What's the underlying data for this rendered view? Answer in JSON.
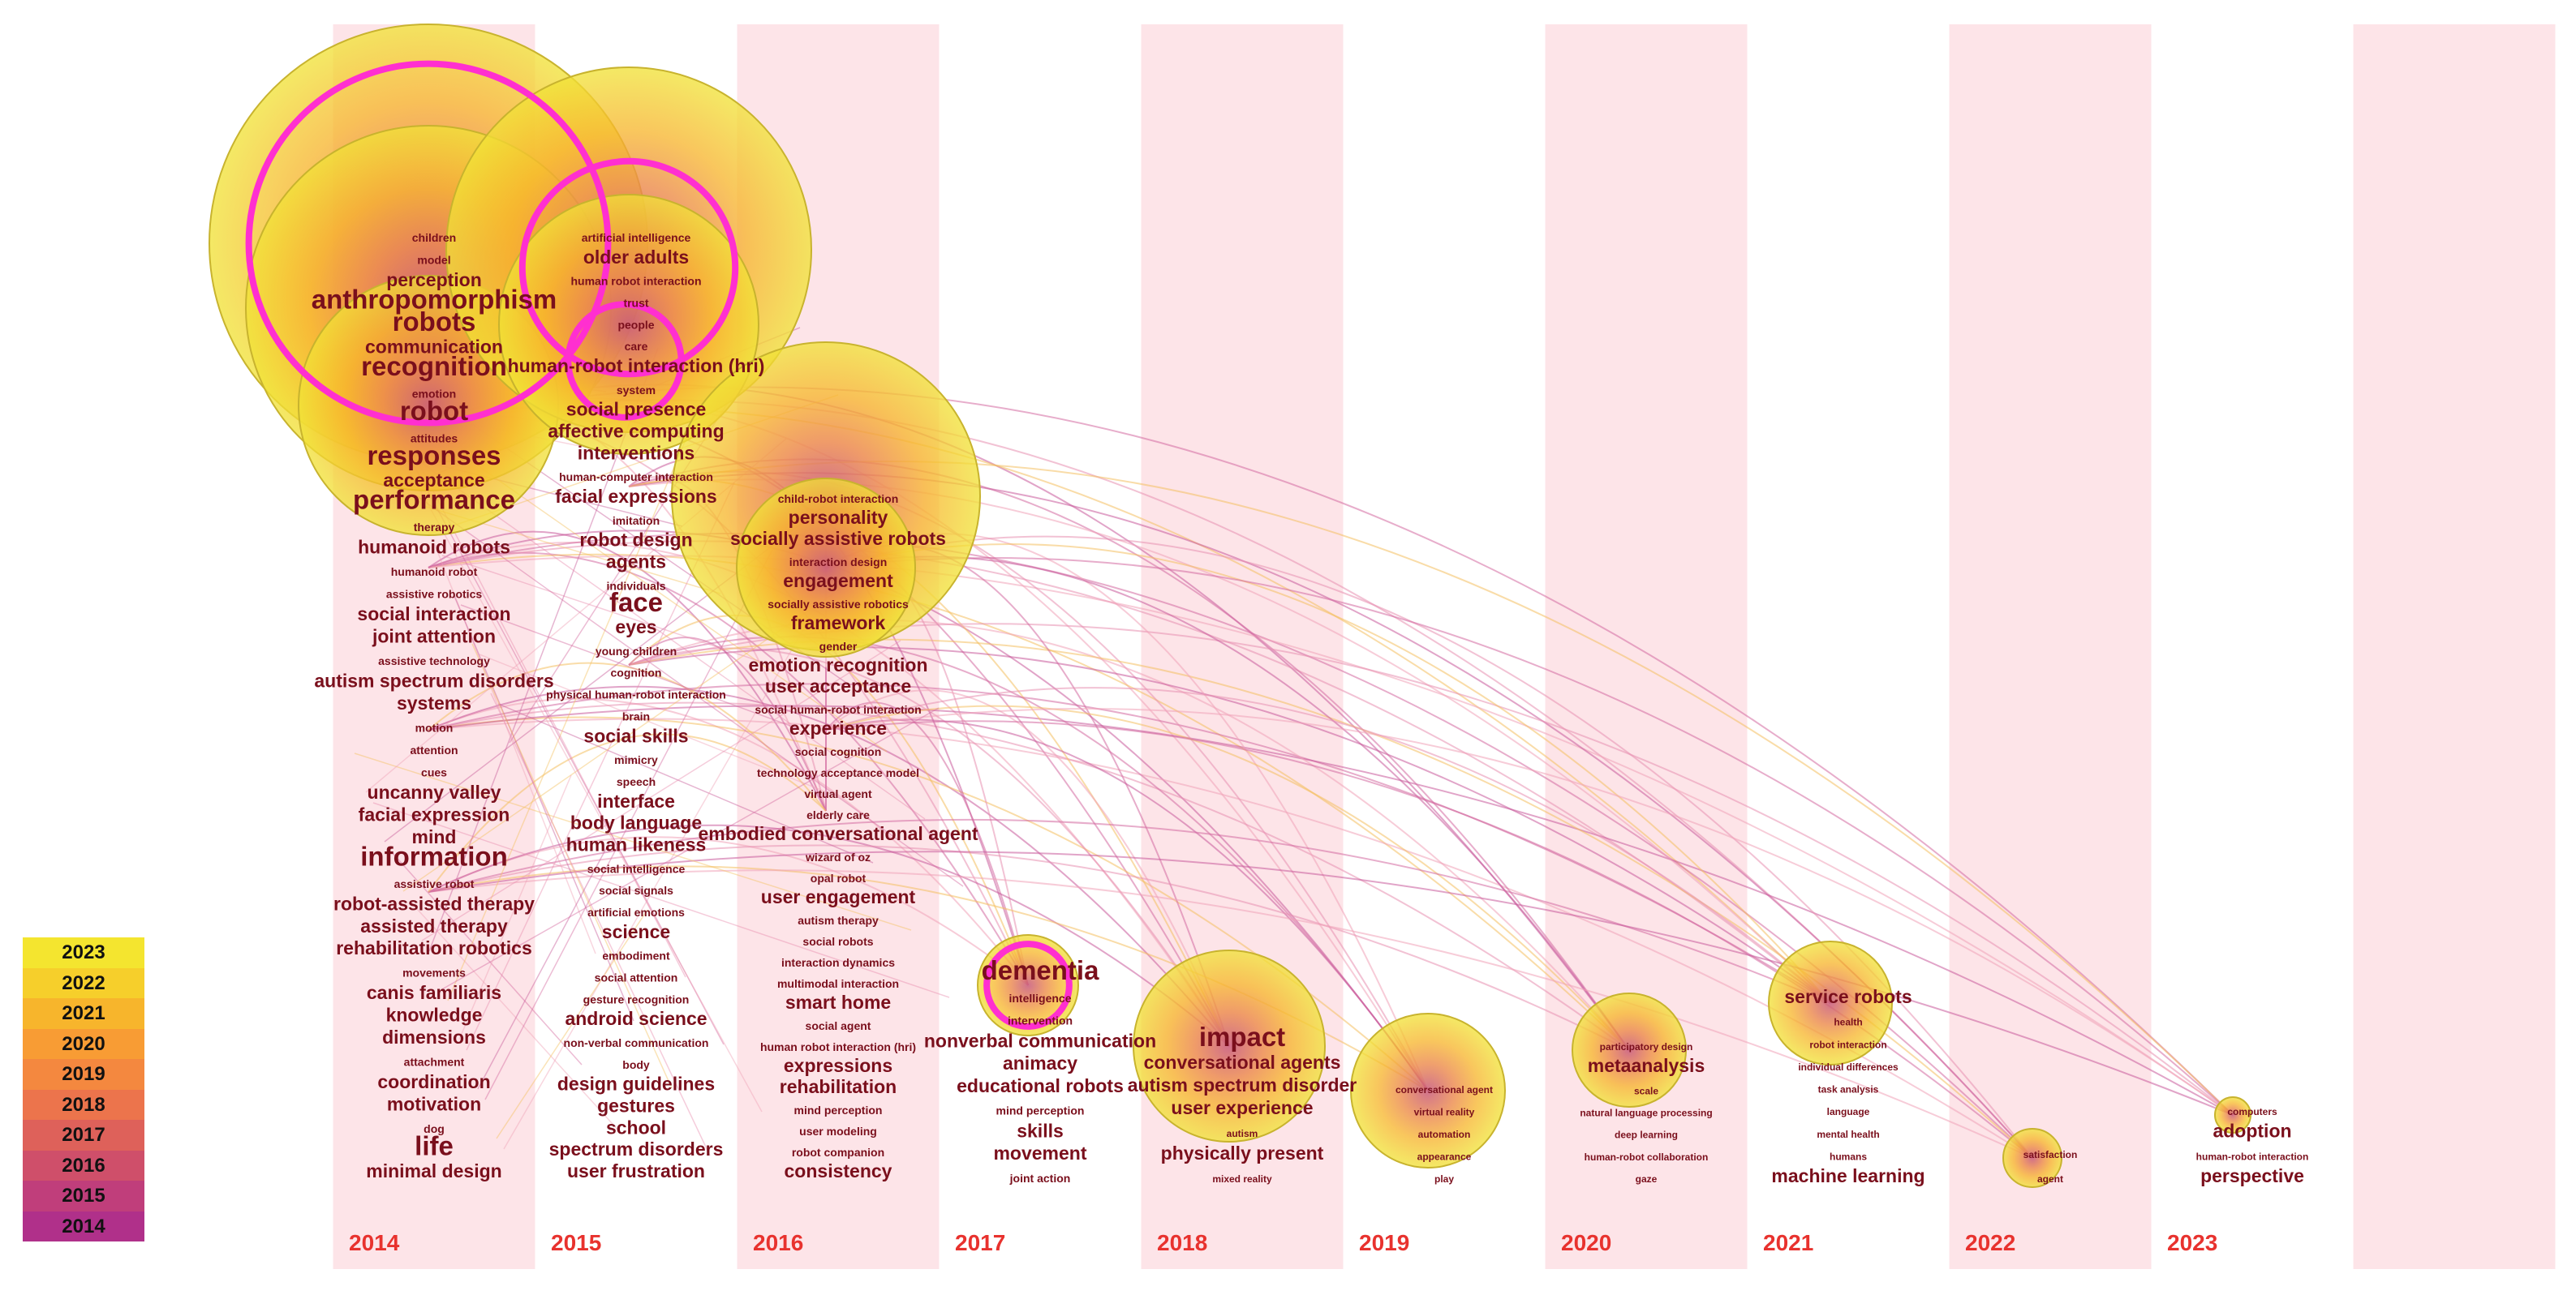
{
  "years": [
    "2014",
    "2015",
    "2016",
    "2017",
    "2018",
    "2019",
    "2020",
    "2021",
    "2022",
    "2023"
  ],
  "legend": [
    {
      "label": "2023",
      "color": "#f4e52f"
    },
    {
      "label": "2022",
      "color": "#f6cf2b"
    },
    {
      "label": "2021",
      "color": "#f7b52c"
    },
    {
      "label": "2020",
      "color": "#f89c34"
    },
    {
      "label": "2019",
      "color": "#f4883f"
    },
    {
      "label": "2018",
      "color": "#ec744c"
    },
    {
      "label": "2017",
      "color": "#de615a"
    },
    {
      "label": "2016",
      "color": "#cf4f6a"
    },
    {
      "label": "2015",
      "color": "#c03e7b"
    },
    {
      "label": "2014",
      "color": "#b0308a"
    }
  ],
  "bands": {
    "fill": "#fde4e8",
    "label_color": "#e8322e"
  },
  "columns": [
    {
      "year": "2014",
      "terms": [
        "children",
        "model",
        "perception",
        "anthropomorphism",
        "robots",
        "communication",
        "recognition",
        "emotion",
        "robot",
        "attitudes",
        "responses",
        "acceptance",
        "performance",
        "therapy",
        "humanoid robots",
        "humanoid robot",
        "assistive robotics",
        "social interaction",
        "joint attention",
        "assistive technology",
        "autism spectrum disorders",
        "systems",
        "motion",
        "attention",
        "cues",
        "uncanny valley",
        "facial expression",
        "mind",
        "information",
        "assistive robot",
        "robot-assisted therapy",
        "assisted therapy",
        "rehabilitation robotics",
        "movements",
        "canis familiaris",
        "knowledge",
        "dimensions",
        "attachment",
        "coordination",
        "motivation",
        "dog",
        "life",
        "minimal design"
      ]
    },
    {
      "year": "2015",
      "terms": [
        "artificial intelligence",
        "older adults",
        "human robot interaction",
        "trust",
        "people",
        "care",
        "human-robot interaction (hri)",
        "system",
        "social presence",
        "affective computing",
        "interventions",
        "human-computer interaction",
        "facial expressions",
        "imitation",
        "robot design",
        "agents",
        "individuals",
        "face",
        "eyes",
        "young children",
        "cognition",
        "physical human-robot interaction",
        "brain",
        "social skills",
        "mimicry",
        "speech",
        "interface",
        "body language",
        "human likeness",
        "social intelligence",
        "social signals",
        "artificial emotions",
        "science",
        "embodiment",
        "social attention",
        "gesture recognition",
        "android science",
        "non-verbal communication",
        "body",
        "design guidelines",
        "gestures",
        "school",
        "spectrum disorders",
        "user frustration"
      ]
    },
    {
      "year": "2016",
      "terms": [
        "child-robot interaction",
        "personality",
        "socially assistive robots",
        "interaction design",
        "engagement",
        "socially assistive robotics",
        "framework",
        "gender",
        "emotion recognition",
        "user acceptance",
        "social human-robot interaction",
        "experience",
        "social cognition",
        "technology acceptance model",
        "virtual agent",
        "elderly care",
        "embodied conversational agent",
        "wizard of oz",
        "opal robot",
        "user engagement",
        "autism therapy",
        "social robots",
        "interaction dynamics",
        "multimodal interaction",
        "smart home",
        "social agent",
        "human robot interaction (hri)",
        "expressions",
        "rehabilitation",
        "mind perception",
        "user modeling",
        "robot companion",
        "consistency"
      ]
    },
    {
      "year": "2017",
      "terms": [
        "dementia",
        "intelligence",
        "intervention",
        "nonverbal communication",
        "animacy",
        "educational robots",
        "mind perception",
        "skills",
        "movement",
        "joint action"
      ]
    },
    {
      "year": "2018",
      "terms": [
        "impact",
        "conversational agents",
        "autism spectrum disorder",
        "user experience",
        "autism",
        "physically present",
        "mixed reality"
      ]
    },
    {
      "year": "2019",
      "terms": [
        "conversational agent",
        "virtual reality",
        "automation",
        "appearance",
        "play"
      ]
    },
    {
      "year": "2020",
      "terms": [
        "participatory design",
        "metaanalysis",
        "scale",
        "natural language processing",
        "deep learning",
        "human-robot collaboration",
        "gaze"
      ]
    },
    {
      "year": "2021",
      "terms": [
        "service robots",
        "health",
        "robot interaction",
        "individual differences",
        "task analysis",
        "language",
        "mental health",
        "humans",
        "machine learning"
      ]
    },
    {
      "year": "2022",
      "terms": [
        "satisfaction",
        "agent"
      ]
    },
    {
      "year": "2023",
      "terms": [
        "computers",
        "adoption",
        "human-robot interaction",
        "perspective"
      ]
    }
  ]
}
